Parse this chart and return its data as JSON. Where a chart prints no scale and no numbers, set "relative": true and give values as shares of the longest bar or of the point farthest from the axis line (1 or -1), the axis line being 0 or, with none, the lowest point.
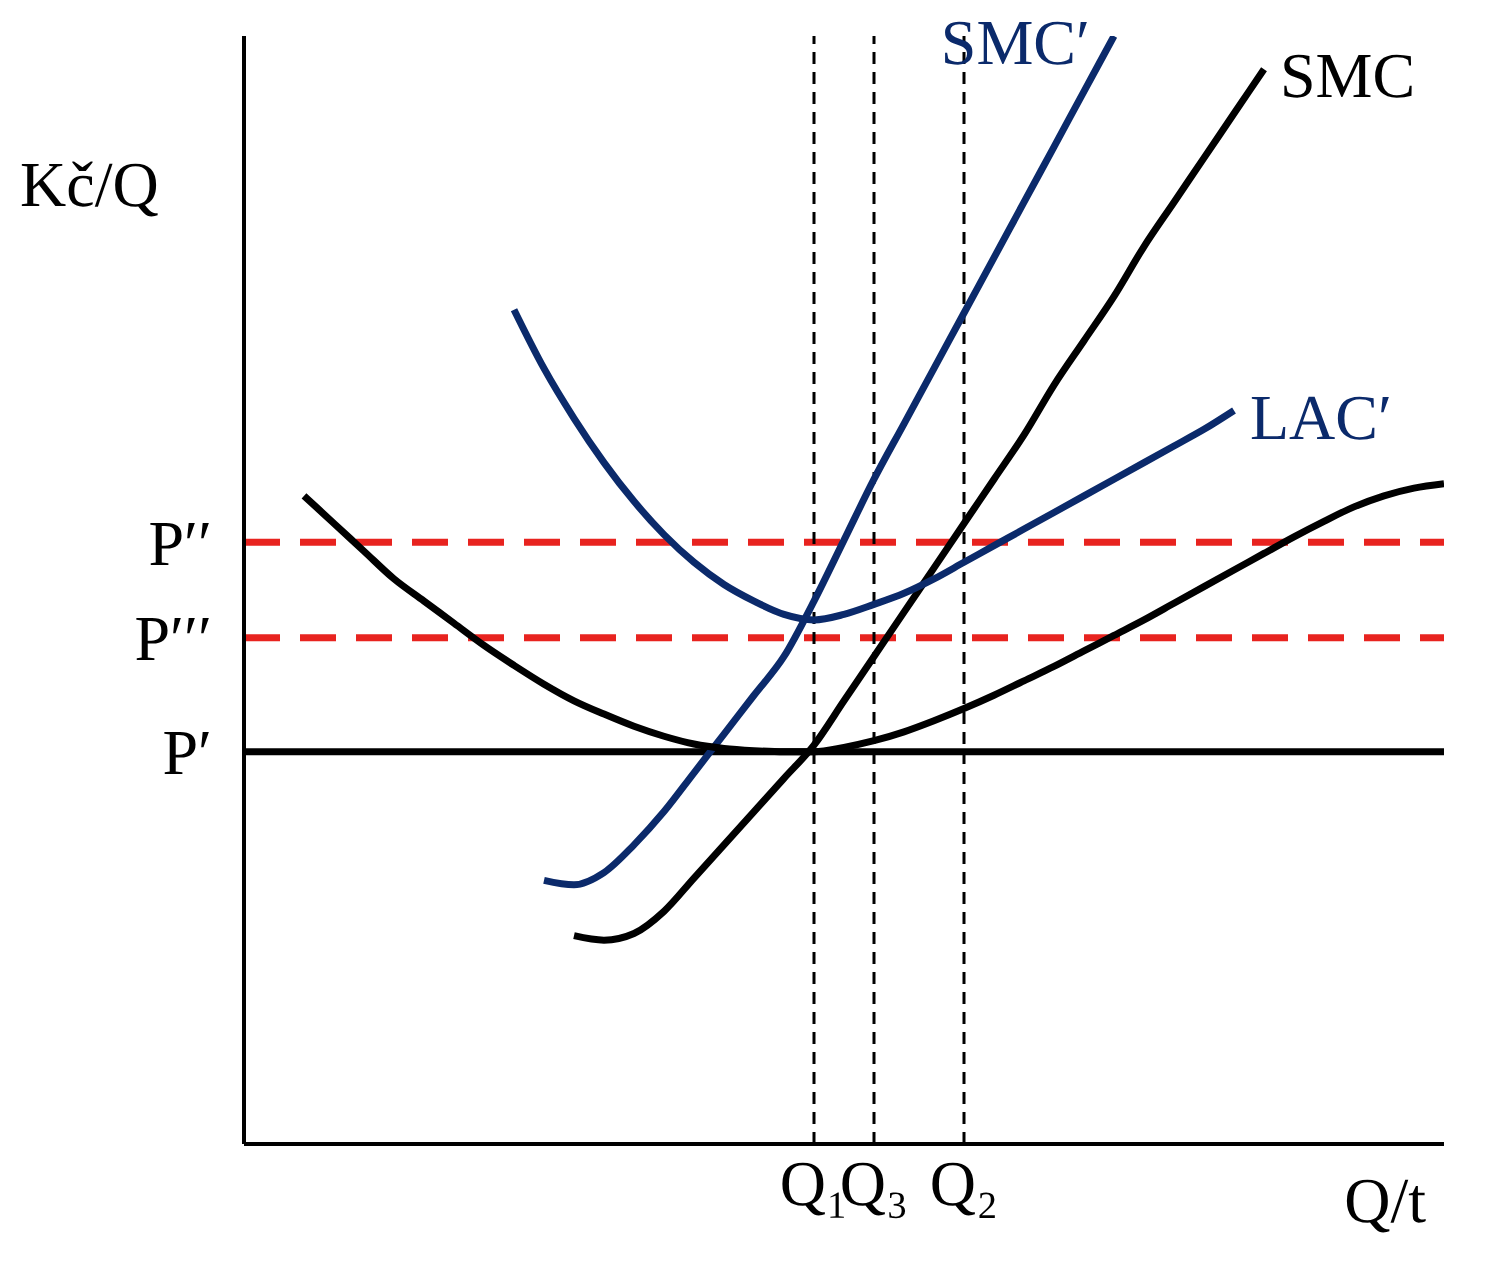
{
  "chart_data": {
    "type": "line",
    "relative": true,
    "xlabel": "Q/t",
    "ylabel": "Kč/Q",
    "tick_labels": "x",
    "marker": "none",
    "categories": [
      null,
      null,
      null,
      null,
      null,
      null,
      null,
      null,
      null,
      null,
      null,
      null,
      null,
      null,
      null,
      null,
      null,
      null,
      null,
      "Q₁",
      null,
      "Q₃",
      null,
      null,
      "Q₂",
      null,
      null,
      null,
      null,
      null,
      null,
      null,
      null,
      null,
      null,
      null,
      null,
      null,
      null,
      null,
      null
    ],
    "series": [
      {
        "name": "SMC′",
        "color": "#0b2a6b",
        "values": [
          null,
          null,
          null,
          null,
          null,
          null,
          null,
          null,
          null,
          null,
          0.238,
          0.234,
          0.245,
          0.27,
          0.3,
          0.335,
          0.37,
          0.405,
          0.44,
          0.49,
          0.545,
          0.6,
          0.65,
          0.7,
          0.75,
          0.8,
          0.85,
          0.9,
          0.95,
          1.0,
          null,
          null,
          null,
          null,
          null,
          null,
          null,
          null,
          null,
          null,
          null
        ]
      },
      {
        "name": "SMC",
        "color": "#000000",
        "values": [
          null,
          null,
          null,
          null,
          null,
          null,
          null,
          null,
          null,
          null,
          null,
          0.188,
          0.184,
          0.19,
          0.21,
          0.24,
          0.27,
          0.3,
          0.33,
          0.36,
          0.4,
          0.44,
          0.48,
          0.52,
          0.56,
          0.6,
          0.64,
          0.685,
          0.725,
          0.765,
          0.81,
          0.85,
          0.89,
          0.93,
          0.97,
          null,
          null,
          null,
          null,
          null,
          null
        ]
      },
      {
        "name": "LAC′",
        "color": "#0b2a6b",
        "values": [
          null,
          null,
          null,
          null,
          null,
          null,
          null,
          null,
          null,
          0.753,
          0.7,
          0.655,
          0.615,
          0.58,
          0.55,
          0.525,
          0.505,
          0.49,
          0.478,
          0.473,
          0.478,
          0.487,
          0.497,
          0.51,
          0.525,
          0.54,
          0.555,
          0.57,
          0.585,
          0.6,
          0.615,
          0.63,
          0.645,
          0.662,
          null,
          null,
          null,
          null,
          null,
          null,
          null
        ]
      },
      {
        "color": "#000000",
        "values": [
          null,
          null,
          0.585,
          0.56,
          0.535,
          0.51,
          0.49,
          0.47,
          0.45,
          0.432,
          0.415,
          0.4,
          0.388,
          0.377,
          0.368,
          0.361,
          0.357,
          0.355,
          0.354,
          0.354,
          0.358,
          0.364,
          0.372,
          0.382,
          0.393,
          0.405,
          0.418,
          0.431,
          0.445,
          0.459,
          0.473,
          0.488,
          0.503,
          0.518,
          0.533,
          0.548,
          0.562,
          0.575,
          0.585,
          0.592,
          0.596
        ]
      }
    ],
    "ref_lines": [
      {
        "axis": "y",
        "value": 0.354,
        "label": "P′",
        "color": "#000000",
        "line_style": "solid"
      },
      {
        "axis": "y",
        "value": 0.457,
        "label": "P′′′",
        "color": "#e8231f",
        "line_style": "dashed"
      },
      {
        "axis": "y",
        "value": 0.543,
        "label": "P′′",
        "color": "#e8231f",
        "line_style": "dashed"
      },
      {
        "axis": "x",
        "value": "Q₁",
        "color": "#000000",
        "line_style": "dotted"
      },
      {
        "axis": "x",
        "value": "Q₃",
        "color": "#000000",
        "line_style": "dotted"
      },
      {
        "axis": "x",
        "value": "Q₂",
        "color": "#000000",
        "line_style": "dotted"
      }
    ]
  }
}
